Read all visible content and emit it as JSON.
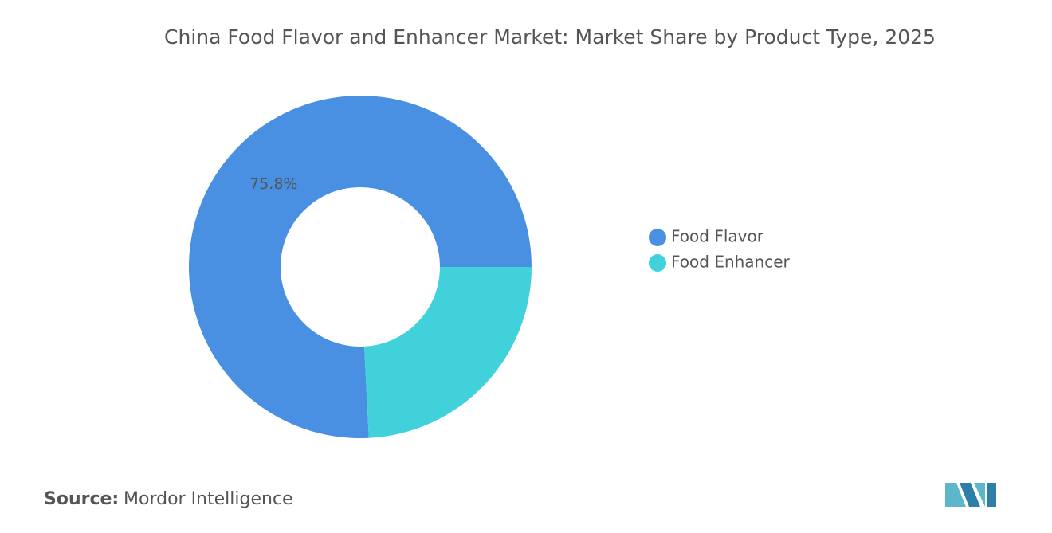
{
  "chart_data": {
    "type": "donut",
    "title": "China Food Flavor and Enhancer Market: Market Share by Product Type, 2025",
    "categories": [
      "Food Flavor",
      "Food Enhancer"
    ],
    "values": [
      75.8,
      24.2
    ],
    "value_labels": [
      "75.8%",
      null
    ],
    "colors": [
      "#4a90e2",
      "#40d1da"
    ],
    "legend": "right"
  },
  "source": {
    "label": "Source:",
    "text": "Mordor Intelligence"
  }
}
